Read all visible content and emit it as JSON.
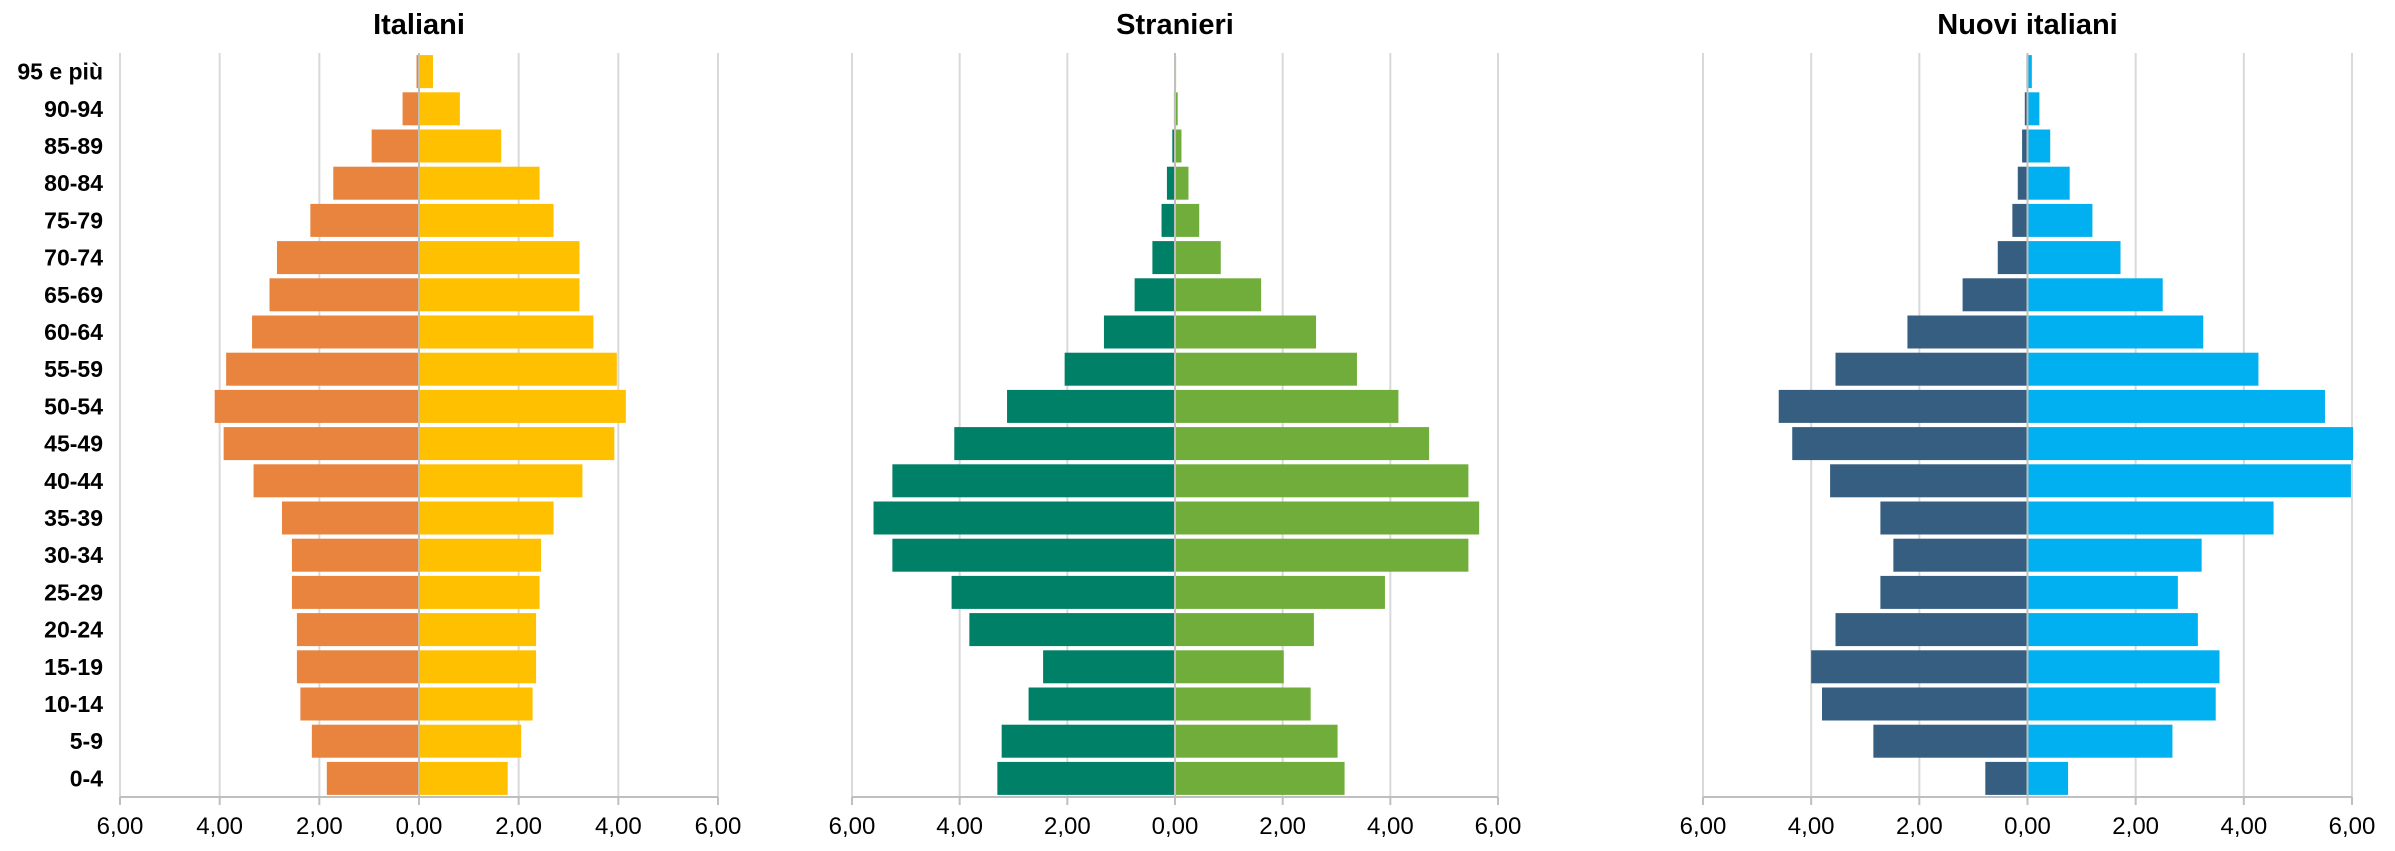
{
  "chart_data": [
    {
      "type": "bar",
      "orientation": "horizontal-diverging",
      "title": "Italiani",
      "categories": [
        "95 e più",
        "90-94",
        "85-89",
        "80-84",
        "75-79",
        "70-74",
        "65-69",
        "60-64",
        "55-59",
        "50-54",
        "45-49",
        "40-44",
        "35-39",
        "30-34",
        "25-29",
        "20-24",
        "15-19",
        "10-14",
        "5-9",
        "0-4"
      ],
      "xlim": [
        -6,
        6
      ],
      "xticks": [
        "6,00",
        "4,00",
        "2,00",
        "0,00",
        "2,00",
        "4,00",
        "6,00"
      ],
      "grid": true,
      "series": [
        {
          "side": "left",
          "color": "#E8843E",
          "values": [
            0.05,
            0.33,
            0.95,
            1.72,
            2.18,
            2.85,
            3.0,
            3.35,
            3.87,
            4.1,
            3.92,
            3.32,
            2.75,
            2.55,
            2.55,
            2.45,
            2.45,
            2.38,
            2.15,
            1.85
          ]
        },
        {
          "side": "right",
          "color": "#FFC000",
          "values": [
            0.28,
            0.82,
            1.65,
            2.42,
            2.7,
            3.22,
            3.22,
            3.5,
            3.97,
            4.15,
            3.92,
            3.28,
            2.7,
            2.45,
            2.42,
            2.35,
            2.35,
            2.28,
            2.05,
            1.78
          ]
        }
      ]
    },
    {
      "type": "bar",
      "orientation": "horizontal-diverging",
      "title": "Stranieri",
      "categories": [
        "95 e più",
        "90-94",
        "85-89",
        "80-84",
        "75-79",
        "70-74",
        "65-69",
        "60-64",
        "55-59",
        "50-54",
        "45-49",
        "40-44",
        "35-39",
        "30-34",
        "25-29",
        "20-24",
        "15-19",
        "10-14",
        "5-9",
        "0-4"
      ],
      "xlim": [
        -6,
        6
      ],
      "xticks": [
        "6,00",
        "4,00",
        "2,00",
        "0,00",
        "2,00",
        "4,00",
        "6,00"
      ],
      "grid": true,
      "series": [
        {
          "side": "left",
          "color": "#008066",
          "values": [
            0.0,
            0.02,
            0.05,
            0.15,
            0.25,
            0.42,
            0.75,
            1.32,
            2.05,
            3.12,
            4.1,
            5.25,
            5.6,
            5.25,
            4.15,
            3.82,
            2.45,
            2.72,
            3.22,
            3.3
          ]
        },
        {
          "side": "right",
          "color": "#70AD3A",
          "values": [
            0.02,
            0.05,
            0.12,
            0.25,
            0.45,
            0.85,
            1.6,
            2.62,
            3.38,
            4.15,
            4.72,
            5.45,
            5.65,
            5.45,
            3.9,
            2.58,
            2.02,
            2.52,
            3.02,
            3.15
          ]
        }
      ]
    },
    {
      "type": "bar",
      "orientation": "horizontal-diverging",
      "title": "Nuovi italiani",
      "categories": [
        "95 e più",
        "90-94",
        "85-89",
        "80-84",
        "75-79",
        "70-74",
        "65-69",
        "60-64",
        "55-59",
        "50-54",
        "45-49",
        "40-44",
        "35-39",
        "30-34",
        "25-29",
        "20-24",
        "15-19",
        "10-14",
        "5-9",
        "0-4"
      ],
      "xlim": [
        -6,
        6
      ],
      "xticks": [
        "6,00",
        "4,00",
        "2,00",
        "0,00",
        "2,00",
        "4,00",
        "6,00"
      ],
      "grid": true,
      "series": [
        {
          "side": "left",
          "color": "#365E80",
          "values": [
            0.02,
            0.05,
            0.1,
            0.18,
            0.28,
            0.55,
            1.2,
            2.22,
            3.55,
            4.6,
            4.35,
            3.65,
            2.72,
            2.48,
            2.72,
            3.55,
            4.0,
            3.8,
            2.85,
            0.78
          ]
        },
        {
          "side": "right",
          "color": "#00B0F0",
          "values": [
            0.08,
            0.22,
            0.42,
            0.78,
            1.2,
            1.72,
            2.5,
            3.25,
            4.27,
            5.5,
            6.02,
            5.98,
            4.55,
            3.22,
            2.78,
            3.15,
            3.55,
            3.48,
            2.68,
            0.75
          ]
        }
      ]
    }
  ]
}
